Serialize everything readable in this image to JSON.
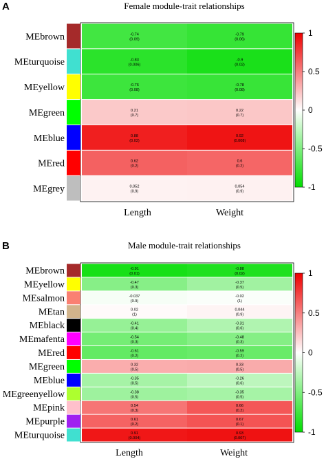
{
  "chart_data": [
    {
      "type": "heatmap",
      "panel": "A",
      "title": "Female module-trait relationships",
      "columns": [
        "Length",
        "Weight"
      ],
      "rows": [
        "MEbrown",
        "MEturquoise",
        "MEyellow",
        "MEgreen",
        "MEblue",
        "MEred",
        "MEgrey"
      ],
      "module_colors": [
        "#a52a2a",
        "#40e0d0",
        "#ffff00",
        "#00ff00",
        "#0000ff",
        "#ff0000",
        "#bebebe"
      ],
      "values": [
        [
          -0.74,
          -0.79
        ],
        [
          -0.83,
          -0.9
        ],
        [
          -0.76,
          -0.78
        ],
        [
          0.21,
          0.22
        ],
        [
          0.88,
          0.92
        ],
        [
          0.62,
          0.6
        ],
        [
          0.052,
          0.054
        ]
      ],
      "cell_text": [
        [
          "-0.74",
          "-0.79"
        ],
        [
          "-0.83",
          "-0.9"
        ],
        [
          "-0.76",
          "-0.78"
        ],
        [
          "0.21",
          "0.22"
        ],
        [
          "0.88",
          "0.92"
        ],
        [
          "0.62",
          "0.6"
        ],
        [
          "0.052",
          "0.054"
        ]
      ],
      "pvalues": [
        [
          "(0.09)",
          "(0.06)"
        ],
        [
          "(0.006)",
          "(0.02)"
        ],
        [
          "(0.08)",
          "(0.08)"
        ],
        [
          "(0.7)",
          "(0.7)"
        ],
        [
          "(0.02)",
          "(0.008)"
        ],
        [
          "(0.2)",
          "(0.2)"
        ],
        [
          "(0.9)",
          "(0.9)"
        ]
      ],
      "colorbar": {
        "range": [
          -1,
          1
        ],
        "ticks": [
          "1",
          "0.5",
          "0",
          "-0.5",
          "-1"
        ],
        "low": "#00dd00",
        "mid": "#ffffff",
        "high": "#ee0000"
      }
    },
    {
      "type": "heatmap",
      "panel": "B",
      "title": "Male module-trait relationships",
      "columns": [
        "Length",
        "Weight"
      ],
      "rows": [
        "MEbrown",
        "MEyellow",
        "MEsalmon",
        "MEtan",
        "MEblack",
        "MEmafenta",
        "MEred",
        "MEgreen",
        "MEblue",
        "MEgreenyellow",
        "MEpink",
        "MEpurple",
        "MEturquoise"
      ],
      "module_colors": [
        "#a52a2a",
        "#ffff00",
        "#fa8072",
        "#d2b48c",
        "#000000",
        "#ff00ff",
        "#ff0000",
        "#00ff00",
        "#0000ff",
        "#adff2f",
        "#ffc0cb",
        "#a020f0",
        "#40e0d0"
      ],
      "values": [
        [
          -0.91,
          -0.88
        ],
        [
          -0.47,
          -0.37
        ],
        [
          -0.037,
          -0.02
        ],
        [
          0.02,
          0.044
        ],
        [
          -0.41,
          -0.31
        ],
        [
          -0.54,
          -0.48
        ],
        [
          -0.61,
          -0.59
        ],
        [
          0.32,
          0.33
        ],
        [
          -0.35,
          -0.26
        ],
        [
          -0.38,
          -0.35
        ],
        [
          0.54,
          0.66
        ],
        [
          0.61,
          0.67
        ],
        [
          0.91,
          0.93
        ]
      ],
      "cell_text": [
        [
          "-0.91",
          "-0.88"
        ],
        [
          "-0.47",
          "-0.37"
        ],
        [
          "-0.037",
          "-0.02"
        ],
        [
          "0.02",
          "0.044"
        ],
        [
          "-0.41",
          "-0.31"
        ],
        [
          "-0.54",
          "-0.48"
        ],
        [
          "-0.61",
          "-0.59"
        ],
        [
          "0.32",
          "0.33"
        ],
        [
          "-0.35",
          "-0.26"
        ],
        [
          "-0.38",
          "-0.35"
        ],
        [
          "0.54",
          "0.66"
        ],
        [
          "0.61",
          "0.67"
        ],
        [
          "0.91",
          "0.93"
        ]
      ],
      "pvalues": [
        [
          "(0.01)",
          "(0.02)"
        ],
        [
          "(0.3)",
          "(0.5)"
        ],
        [
          "(0.9)",
          "(1)"
        ],
        [
          "(1)",
          "(0.9)"
        ],
        [
          "(0.4)",
          "(0.6)"
        ],
        [
          "(0.3)",
          "(0.3)"
        ],
        [
          "(0.2)",
          "(0.2)"
        ],
        [
          "(0.5)",
          "(0.5)"
        ],
        [
          "(0.5)",
          "(0.6)"
        ],
        [
          "(0.5)",
          "(0.5)"
        ],
        [
          "(0.3)",
          "(0.2)"
        ],
        [
          "(0.2)",
          "(0.1)"
        ],
        [
          "(0.004)",
          "(0.007)"
        ]
      ],
      "colorbar": {
        "range": [
          -1,
          1
        ],
        "ticks": [
          "1",
          "0.5",
          "0",
          "-0.5",
          "-1"
        ],
        "low": "#00dd00",
        "mid": "#ffffff",
        "high": "#ee0000"
      }
    }
  ]
}
